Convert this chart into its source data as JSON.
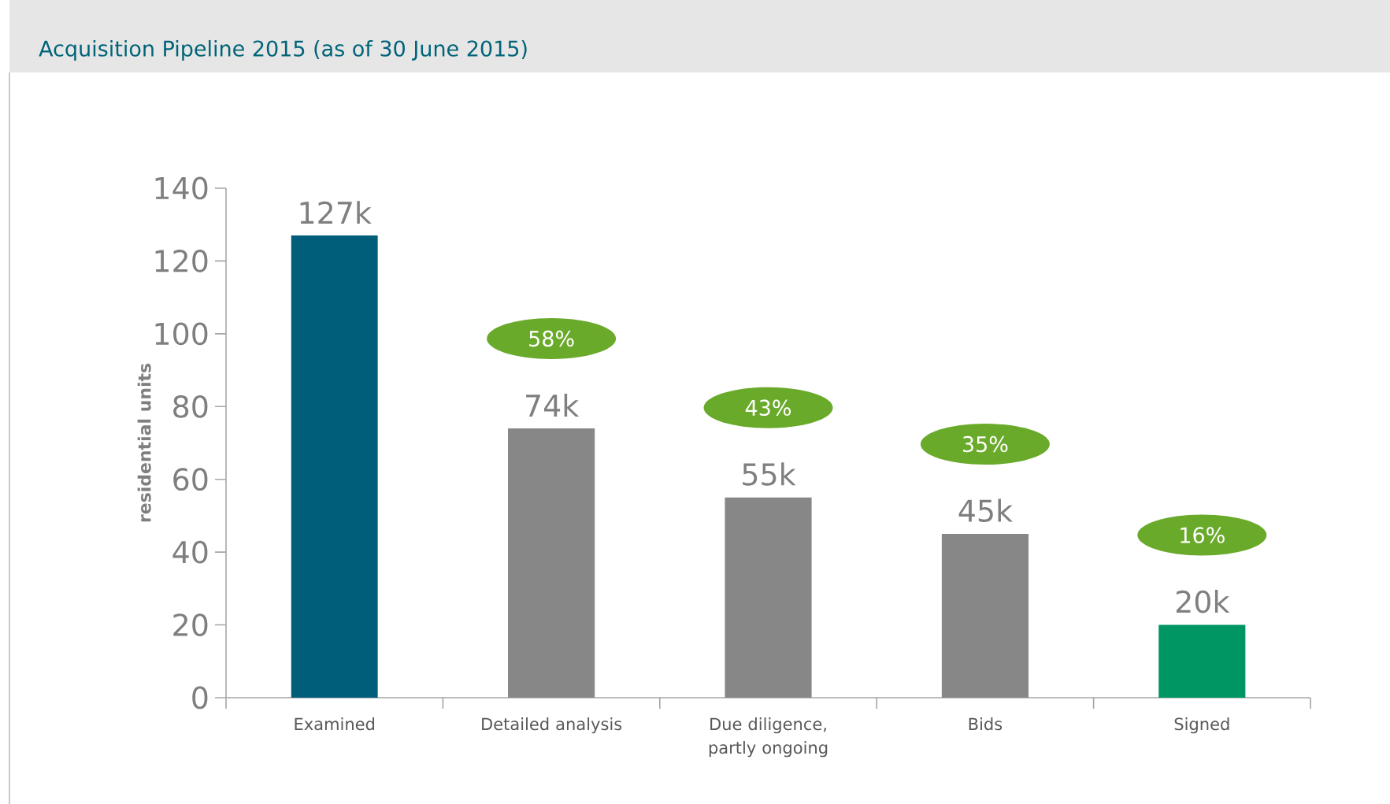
{
  "chart_data": {
    "type": "bar",
    "title": "Acquisition Pipeline 2015 (as of 30 June 2015)",
    "ylabel": "residential units",
    "categories": [
      "Examined",
      "Detailed analysis",
      "Due diligence, partly ongoing",
      "Bids",
      "Signed"
    ],
    "values": [
      127,
      74,
      55,
      45,
      20
    ],
    "colors": [
      "#005e7a",
      "#878787",
      "#878787",
      "#878787",
      "#009664"
    ],
    "value_labels": [
      "127k",
      "74k",
      "55k",
      "45k",
      "20k"
    ],
    "ylim": [
      0,
      140
    ],
    "yticks": [
      0,
      20,
      40,
      60,
      80,
      100,
      120,
      140
    ],
    "annotations": [
      "58%",
      "43%",
      "35%",
      "16%"
    ]
  }
}
